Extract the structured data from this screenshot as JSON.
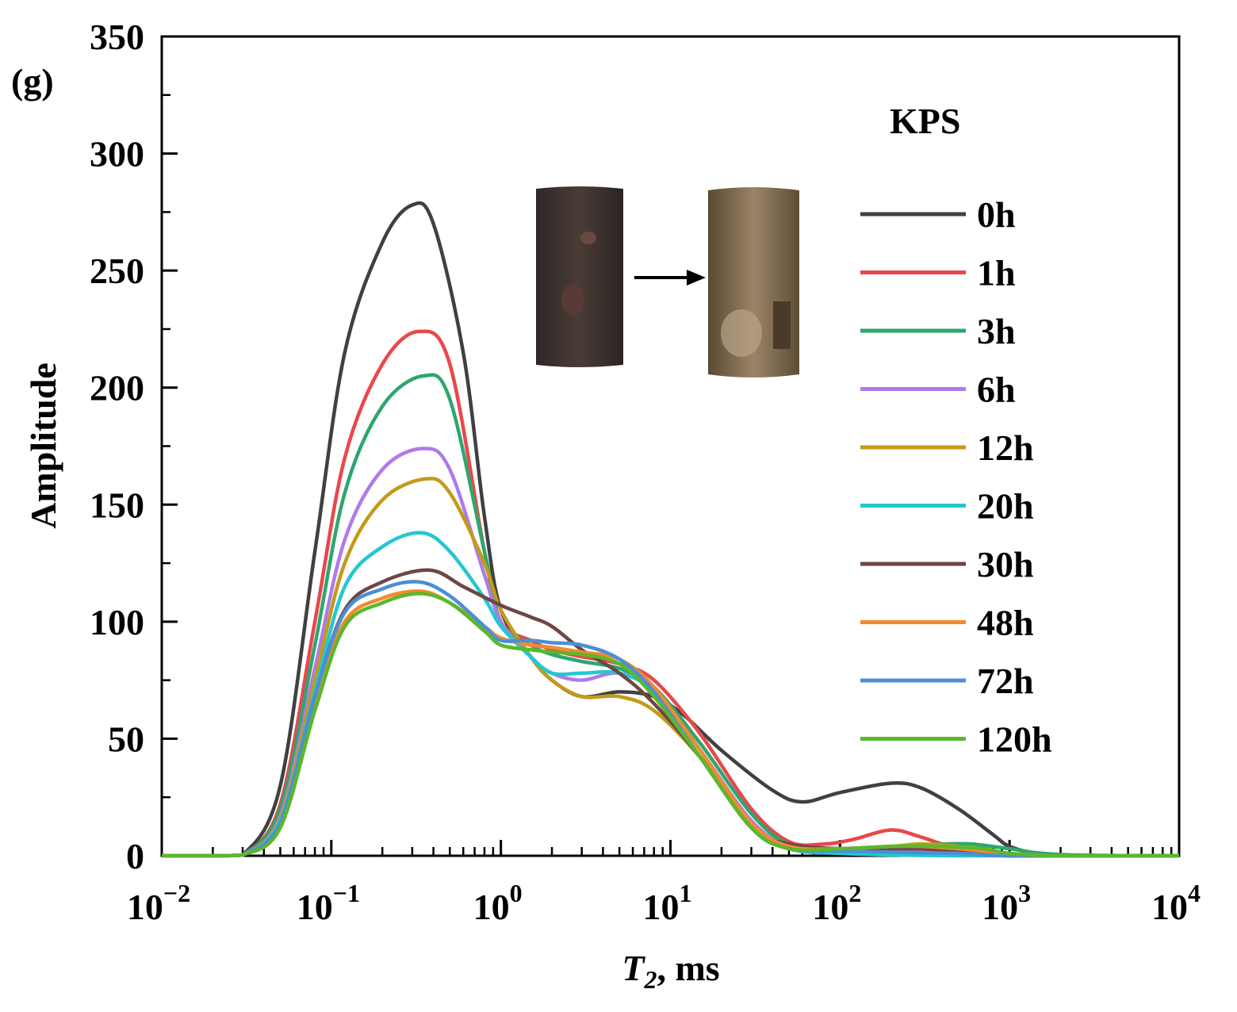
{
  "panel_label": "(g)",
  "chart_data": {
    "type": "line",
    "title": "",
    "xlabel_italic": "T",
    "xlabel_sub": "2",
    "xlabel_rest": ", ms",
    "ylabel": "Amplitude",
    "xscale": "log",
    "xlim": [
      0.01,
      10000
    ],
    "ylim": [
      0,
      350
    ],
    "grid": false,
    "x_ticks": [
      {
        "value": 0.01,
        "base": "10",
        "exp": "−2"
      },
      {
        "value": 0.1,
        "base": "10",
        "exp": "−1"
      },
      {
        "value": 1,
        "base": "10",
        "exp": "0"
      },
      {
        "value": 10,
        "base": "10",
        "exp": "1"
      },
      {
        "value": 100,
        "base": "10",
        "exp": "2"
      },
      {
        "value": 1000,
        "base": "10",
        "exp": "3"
      },
      {
        "value": 10000,
        "base": "10",
        "exp": "4"
      }
    ],
    "y_ticks": [
      0,
      50,
      100,
      150,
      200,
      250,
      300,
      350
    ],
    "legend_title": "KPS",
    "legend_position": "right",
    "series": [
      {
        "name": "0h",
        "color": "#404040",
        "points": [
          [
            0.01,
            0
          ],
          [
            0.02,
            0
          ],
          [
            0.03,
            0.3
          ],
          [
            0.05,
            30
          ],
          [
            0.08,
            130
          ],
          [
            0.12,
            215
          ],
          [
            0.2,
            262
          ],
          [
            0.3,
            278
          ],
          [
            0.4,
            270
          ],
          [
            0.6,
            215
          ],
          [
            0.8,
            145
          ],
          [
            1,
            105
          ],
          [
            1.5,
            85
          ],
          [
            2,
            75
          ],
          [
            3,
            68
          ],
          [
            5,
            70
          ],
          [
            8,
            68
          ],
          [
            12,
            60
          ],
          [
            20,
            45
          ],
          [
            40,
            28
          ],
          [
            60,
            23
          ],
          [
            100,
            27
          ],
          [
            200,
            31
          ],
          [
            300,
            29
          ],
          [
            500,
            20
          ],
          [
            800,
            9
          ],
          [
            1000,
            4
          ],
          [
            1500,
            0.5
          ],
          [
            2000,
            0
          ],
          [
            10000,
            0
          ]
        ]
      },
      {
        "name": "1h",
        "color": "#e8484b",
        "points": [
          [
            0.01,
            0
          ],
          [
            0.02,
            0
          ],
          [
            0.03,
            0.3
          ],
          [
            0.05,
            22
          ],
          [
            0.08,
            100
          ],
          [
            0.12,
            170
          ],
          [
            0.2,
            210
          ],
          [
            0.33,
            224
          ],
          [
            0.5,
            210
          ],
          [
            0.8,
            130
          ],
          [
            1,
            100
          ],
          [
            1.5,
            92
          ],
          [
            2,
            88
          ],
          [
            3,
            85
          ],
          [
            5,
            82
          ],
          [
            8,
            75
          ],
          [
            15,
            52
          ],
          [
            30,
            20
          ],
          [
            50,
            6
          ],
          [
            80,
            5
          ],
          [
            120,
            7
          ],
          [
            200,
            11
          ],
          [
            300,
            8
          ],
          [
            500,
            3
          ],
          [
            1000,
            0.5
          ],
          [
            10000,
            0
          ]
        ]
      },
      {
        "name": "3h",
        "color": "#2ea66e",
        "points": [
          [
            0.01,
            0
          ],
          [
            0.02,
            0
          ],
          [
            0.03,
            0.3
          ],
          [
            0.05,
            20
          ],
          [
            0.08,
            90
          ],
          [
            0.12,
            155
          ],
          [
            0.2,
            192
          ],
          [
            0.35,
            205
          ],
          [
            0.5,
            195
          ],
          [
            0.8,
            130
          ],
          [
            1,
            100
          ],
          [
            1.5,
            90
          ],
          [
            2,
            86
          ],
          [
            3,
            83
          ],
          [
            5,
            80
          ],
          [
            8,
            72
          ],
          [
            15,
            48
          ],
          [
            30,
            18
          ],
          [
            50,
            5
          ],
          [
            100,
            3
          ],
          [
            200,
            4
          ],
          [
            400,
            5
          ],
          [
            600,
            5
          ],
          [
            1000,
            3
          ],
          [
            2000,
            0.5
          ],
          [
            10000,
            0
          ]
        ]
      },
      {
        "name": "6h",
        "color": "#b07ae8",
        "points": [
          [
            0.01,
            0
          ],
          [
            0.02,
            0
          ],
          [
            0.03,
            0.3
          ],
          [
            0.05,
            17
          ],
          [
            0.08,
            80
          ],
          [
            0.12,
            135
          ],
          [
            0.2,
            165
          ],
          [
            0.35,
            174
          ],
          [
            0.5,
            165
          ],
          [
            0.8,
            120
          ],
          [
            1,
            100
          ],
          [
            1.5,
            85
          ],
          [
            2,
            78
          ],
          [
            3,
            75
          ],
          [
            5,
            78
          ],
          [
            8,
            70
          ],
          [
            15,
            45
          ],
          [
            30,
            15
          ],
          [
            50,
            4
          ],
          [
            100,
            2
          ],
          [
            200,
            2
          ],
          [
            500,
            1
          ],
          [
            1000,
            0
          ],
          [
            10000,
            0
          ]
        ]
      },
      {
        "name": "12h",
        "color": "#c39a1a",
        "points": [
          [
            0.01,
            0
          ],
          [
            0.02,
            0
          ],
          [
            0.03,
            0.3
          ],
          [
            0.05,
            16
          ],
          [
            0.08,
            75
          ],
          [
            0.12,
            125
          ],
          [
            0.2,
            152
          ],
          [
            0.36,
            161
          ],
          [
            0.5,
            155
          ],
          [
            0.8,
            125
          ],
          [
            1,
            105
          ],
          [
            1.5,
            85
          ],
          [
            2,
            75
          ],
          [
            3,
            68
          ],
          [
            5,
            68
          ],
          [
            8,
            62
          ],
          [
            15,
            42
          ],
          [
            30,
            14
          ],
          [
            50,
            4
          ],
          [
            100,
            3
          ],
          [
            200,
            4
          ],
          [
            300,
            5
          ],
          [
            500,
            4
          ],
          [
            1000,
            1
          ],
          [
            2000,
            0
          ],
          [
            10000,
            0
          ]
        ]
      },
      {
        "name": "20h",
        "color": "#22c8d0",
        "points": [
          [
            0.01,
            0
          ],
          [
            0.02,
            0
          ],
          [
            0.03,
            0.3
          ],
          [
            0.05,
            15
          ],
          [
            0.08,
            70
          ],
          [
            0.12,
            115
          ],
          [
            0.2,
            132
          ],
          [
            0.34,
            138
          ],
          [
            0.5,
            130
          ],
          [
            0.8,
            110
          ],
          [
            1,
            98
          ],
          [
            1.5,
            85
          ],
          [
            2,
            78
          ],
          [
            3,
            78
          ],
          [
            5,
            78
          ],
          [
            8,
            70
          ],
          [
            15,
            45
          ],
          [
            30,
            12
          ],
          [
            50,
            3
          ],
          [
            100,
            1
          ],
          [
            500,
            0
          ],
          [
            10000,
            0
          ]
        ]
      },
      {
        "name": "30h",
        "color": "#6e4646",
        "points": [
          [
            0.01,
            0
          ],
          [
            0.02,
            0
          ],
          [
            0.03,
            0.3
          ],
          [
            0.05,
            14
          ],
          [
            0.08,
            68
          ],
          [
            0.12,
            105
          ],
          [
            0.2,
            117
          ],
          [
            0.38,
            122
          ],
          [
            0.6,
            115
          ],
          [
            1,
            107
          ],
          [
            1.5,
            102
          ],
          [
            2,
            98
          ],
          [
            3,
            88
          ],
          [
            5,
            78
          ],
          [
            8,
            65
          ],
          [
            15,
            42
          ],
          [
            30,
            12
          ],
          [
            50,
            5
          ],
          [
            100,
            3
          ],
          [
            200,
            3
          ],
          [
            300,
            3
          ],
          [
            500,
            2
          ],
          [
            1000,
            0
          ],
          [
            10000,
            0
          ]
        ]
      },
      {
        "name": "48h",
        "color": "#f28a2e",
        "points": [
          [
            0.01,
            0
          ],
          [
            0.02,
            0
          ],
          [
            0.03,
            0.3
          ],
          [
            0.05,
            13
          ],
          [
            0.08,
            65
          ],
          [
            0.12,
            100
          ],
          [
            0.2,
            110
          ],
          [
            0.34,
            113
          ],
          [
            0.5,
            108
          ],
          [
            0.8,
            98
          ],
          [
            1,
            93
          ],
          [
            1.5,
            90
          ],
          [
            2,
            89
          ],
          [
            3,
            87
          ],
          [
            5,
            84
          ],
          [
            8,
            72
          ],
          [
            15,
            45
          ],
          [
            30,
            14
          ],
          [
            50,
            4
          ],
          [
            100,
            3
          ],
          [
            200,
            4
          ],
          [
            300,
            4
          ],
          [
            500,
            3
          ],
          [
            1000,
            1
          ],
          [
            2000,
            0
          ],
          [
            10000,
            0
          ]
        ]
      },
      {
        "name": "72h",
        "color": "#4b8fd6",
        "points": [
          [
            0.01,
            0
          ],
          [
            0.02,
            0
          ],
          [
            0.03,
            0.3
          ],
          [
            0.05,
            14
          ],
          [
            0.08,
            68
          ],
          [
            0.12,
            104
          ],
          [
            0.2,
            114
          ],
          [
            0.33,
            117
          ],
          [
            0.5,
            111
          ],
          [
            0.8,
            98
          ],
          [
            1,
            92
          ],
          [
            1.5,
            92
          ],
          [
            2,
            91
          ],
          [
            3,
            90
          ],
          [
            5,
            84
          ],
          [
            8,
            70
          ],
          [
            15,
            42
          ],
          [
            30,
            12
          ],
          [
            50,
            3
          ],
          [
            100,
            2
          ],
          [
            500,
            1
          ],
          [
            1000,
            0
          ],
          [
            10000,
            0
          ]
        ]
      },
      {
        "name": "120h",
        "color": "#5bb82a",
        "points": [
          [
            0.01,
            0
          ],
          [
            0.02,
            0
          ],
          [
            0.03,
            0.3
          ],
          [
            0.05,
            12
          ],
          [
            0.08,
            62
          ],
          [
            0.12,
            98
          ],
          [
            0.2,
            108
          ],
          [
            0.33,
            112
          ],
          [
            0.5,
            108
          ],
          [
            0.8,
            96
          ],
          [
            1,
            90
          ],
          [
            1.5,
            88
          ],
          [
            2,
            87
          ],
          [
            3,
            86
          ],
          [
            5,
            82
          ],
          [
            8,
            68
          ],
          [
            15,
            42
          ],
          [
            30,
            12
          ],
          [
            50,
            3
          ],
          [
            100,
            3
          ],
          [
            200,
            4
          ],
          [
            400,
            4
          ],
          [
            700,
            3
          ],
          [
            1000,
            1
          ],
          [
            2000,
            0
          ],
          [
            10000,
            0
          ]
        ]
      }
    ]
  }
}
